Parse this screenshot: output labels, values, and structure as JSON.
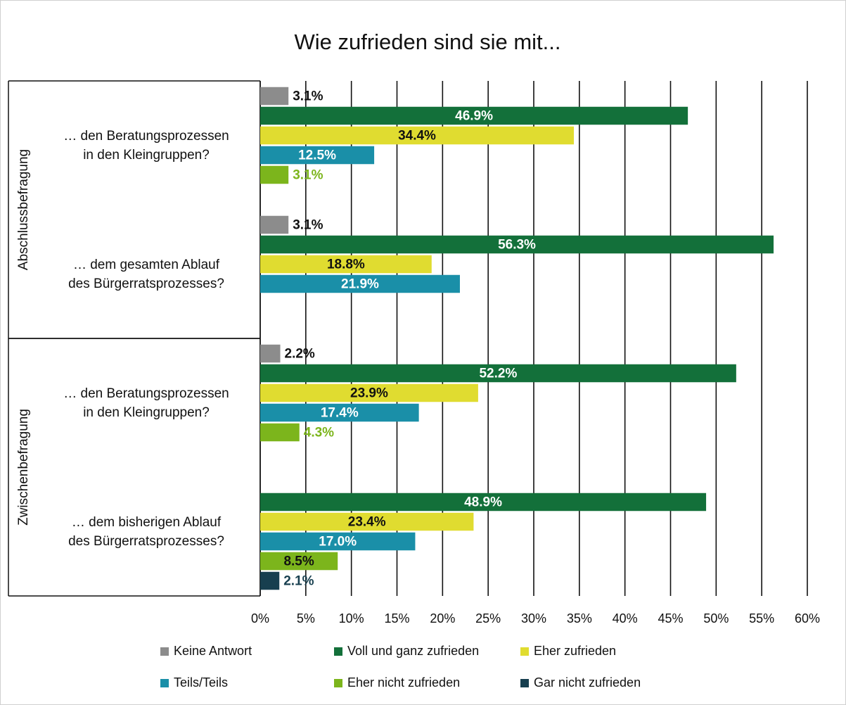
{
  "chart_data": {
    "type": "bar",
    "orientation": "horizontal",
    "title": "Wie zufrieden sind sie mit...",
    "categories": [
      "… den Beratungsprozessen\nin den Kleingruppen?",
      "… dem gesamten Ablauf\ndes Bürgerratsprozesses?",
      "… den Beratungsprozessen\nin den Kleingruppen?",
      "… dem bisherigen Ablauf\ndes Bürgerratsprozesses?"
    ],
    "groups": [
      {
        "label": "Abschlussbefragung",
        "categories": [
          0,
          1
        ]
      },
      {
        "label": "Zwischenbefragung",
        "categories": [
          2,
          3
        ]
      }
    ],
    "series": [
      {
        "name": "Keine Antwort",
        "color": "#8c8c8c",
        "values": [
          3.1,
          3.1,
          2.2,
          null
        ],
        "value_labels": [
          "3.1%",
          "3.1%",
          "2.2%",
          null
        ]
      },
      {
        "name": "Voll und ganz zufrieden",
        "color": "#13703a",
        "values": [
          46.9,
          56.3,
          52.2,
          48.9
        ],
        "value_labels": [
          "46.9%",
          "56.3%",
          "52.2%",
          "48.9%"
        ]
      },
      {
        "name": "Eher zufrieden",
        "color": "#e0dc30",
        "values": [
          34.4,
          18.8,
          23.9,
          23.4
        ],
        "value_labels": [
          "34.4%",
          "18.8%",
          "23.9%",
          "23.4%"
        ]
      },
      {
        "name": "Teils/Teils",
        "color": "#1a8fa8",
        "values": [
          12.5,
          21.9,
          17.4,
          17.0
        ],
        "value_labels": [
          "12.5%",
          "21.9%",
          "17.4%",
          "17.0%"
        ]
      },
      {
        "name": "Eher nicht zufrieden",
        "color": "#7cb51c",
        "values": [
          3.1,
          null,
          4.3,
          8.5
        ],
        "value_labels": [
          "3.1%",
          null,
          "4.3%",
          "8.5%"
        ]
      },
      {
        "name": "Gar nicht zufrieden",
        "color": "#173f4f",
        "values": [
          null,
          null,
          null,
          2.1
        ],
        "value_labels": [
          null,
          null,
          null,
          "2.1%"
        ]
      }
    ],
    "xlim": [
      0,
      60
    ],
    "xticks": [
      {
        "value": 0,
        "label": "0%"
      },
      {
        "value": 5,
        "label": "5%"
      },
      {
        "value": 10,
        "label": "10%"
      },
      {
        "value": 15,
        "label": "15%"
      },
      {
        "value": 20,
        "label": "20%"
      },
      {
        "value": 25,
        "label": "25%"
      },
      {
        "value": 30,
        "label": "30%"
      },
      {
        "value": 35,
        "label": "35%"
      },
      {
        "value": 40,
        "label": "40%"
      },
      {
        "value": 45,
        "label": "45%"
      },
      {
        "value": 50,
        "label": "50%"
      },
      {
        "value": 55,
        "label": "55%"
      },
      {
        "value": 60,
        "label": "60%"
      }
    ],
    "grid": true,
    "legend": "bottom"
  }
}
